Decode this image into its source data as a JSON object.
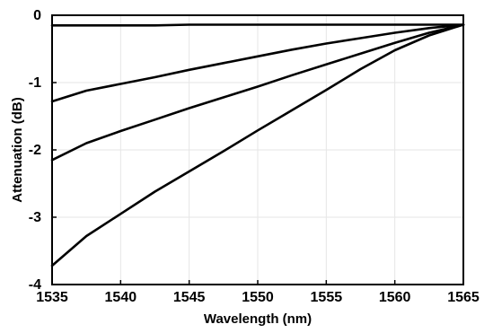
{
  "chart_data": {
    "type": "line",
    "title": "",
    "xlabel": "Wavelength (nm)",
    "ylabel": "Attenuation (dB)",
    "xlim": [
      1535,
      1565
    ],
    "ylim": [
      -4,
      0
    ],
    "xticks": [
      1535,
      1540,
      1545,
      1550,
      1555,
      1560,
      1565
    ],
    "yticks": [
      0,
      -1,
      -2,
      -3,
      -4
    ],
    "xtick_labels": [
      "1535",
      "1540",
      "1545",
      "1550",
      "1555",
      "1560",
      "1565"
    ],
    "ytick_labels": [
      "0",
      "-1",
      "-2",
      "-3",
      "-4"
    ],
    "grid": true,
    "legend": "none",
    "x": [
      1535,
      1537.5,
      1540,
      1542.5,
      1545,
      1547.5,
      1550,
      1552.5,
      1555,
      1557.5,
      1560,
      1562.5,
      1565
    ],
    "series": [
      {
        "values": [
          -0.15,
          -0.15,
          -0.15,
          -0.15,
          -0.14,
          -0.14,
          -0.14,
          -0.14,
          -0.14,
          -0.14,
          -0.14,
          -0.14,
          -0.14
        ]
      },
      {
        "values": [
          -1.28,
          -1.12,
          -1.02,
          -0.92,
          -0.81,
          -0.71,
          -0.61,
          -0.51,
          -0.42,
          -0.34,
          -0.26,
          -0.19,
          -0.14
        ]
      },
      {
        "values": [
          -2.15,
          -1.9,
          -1.72,
          -1.55,
          -1.38,
          -1.22,
          -1.06,
          -0.89,
          -0.73,
          -0.57,
          -0.41,
          -0.26,
          -0.14
        ]
      },
      {
        "values": [
          -3.72,
          -3.28,
          -2.95,
          -2.62,
          -2.32,
          -2.02,
          -1.71,
          -1.41,
          -1.11,
          -0.8,
          -0.52,
          -0.3,
          -0.14
        ]
      }
    ]
  }
}
